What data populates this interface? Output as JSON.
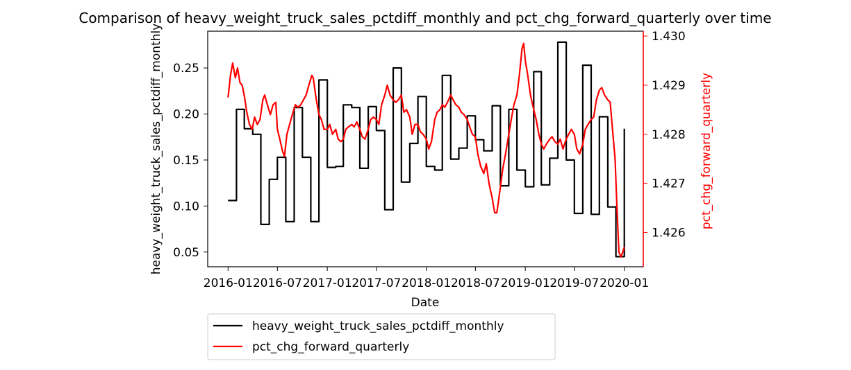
{
  "chart_data": {
    "type": "line",
    "title": "Comparison of heavy_weight_truck_sales_pctdiff_monthly and pct_chg_forward_quarterly over time",
    "xlabel": "Date",
    "ylabel_left": "heavy_weight_truck_sales_pctdiff_monthly",
    "ylabel_right": "pct_chg_forward_quarterly",
    "xlim": [
      "2015-10-18",
      "2020-03-11"
    ],
    "ylim_left": [
      0.034,
      0.29
    ],
    "ylim_right": [
      1.4253,
      1.4301
    ],
    "x_ticks": [
      "2016-01",
      "2016-07",
      "2017-01",
      "2017-07",
      "2018-01",
      "2018-07",
      "2019-01",
      "2019-07",
      "2020-01"
    ],
    "y_ticks_left": [
      "0.05",
      "0.10",
      "0.15",
      "0.20",
      "0.25"
    ],
    "y_ticks_right": [
      "1.426",
      "1.427",
      "1.428",
      "1.429",
      "1.430"
    ],
    "legend": {
      "placement": "below",
      "entries": [
        "heavy_weight_truck_sales_pctdiff_monthly",
        "pct_chg_forward_quarterly"
      ]
    },
    "colors": {
      "left_series": "#000000",
      "right_series": "#ff0000",
      "right_axis": "#ff0000"
    },
    "grid": false,
    "series": [
      {
        "name": "heavy_weight_truck_sales_pctdiff_monthly",
        "axis": "left",
        "step": true,
        "color": "#000000",
        "points": [
          [
            "2016-01-01",
            0.106
          ],
          [
            "2016-02-01",
            0.205
          ],
          [
            "2016-03-01",
            0.184
          ],
          [
            "2016-04-01",
            0.178
          ],
          [
            "2016-05-01",
            0.08
          ],
          [
            "2016-06-01",
            0.129
          ],
          [
            "2016-07-01",
            0.153
          ],
          [
            "2016-08-01",
            0.083
          ],
          [
            "2016-09-01",
            0.207
          ],
          [
            "2016-10-01",
            0.153
          ],
          [
            "2016-11-01",
            0.083
          ],
          [
            "2016-12-01",
            0.237
          ],
          [
            "2017-01-01",
            0.142
          ],
          [
            "2017-02-01",
            0.143
          ],
          [
            "2017-03-01",
            0.21
          ],
          [
            "2017-04-01",
            0.207
          ],
          [
            "2017-05-01",
            0.141
          ],
          [
            "2017-06-01",
            0.208
          ],
          [
            "2017-07-01",
            0.182
          ],
          [
            "2017-08-01",
            0.096
          ],
          [
            "2017-09-01",
            0.25
          ],
          [
            "2017-10-01",
            0.126
          ],
          [
            "2017-11-01",
            0.168
          ],
          [
            "2017-12-01",
            0.219
          ],
          [
            "2018-01-01",
            0.143
          ],
          [
            "2018-02-01",
            0.139
          ],
          [
            "2018-03-01",
            0.242
          ],
          [
            "2018-04-01",
            0.151
          ],
          [
            "2018-05-01",
            0.163
          ],
          [
            "2018-06-01",
            0.198
          ],
          [
            "2018-07-01",
            0.172
          ],
          [
            "2018-08-01",
            0.16
          ],
          [
            "2018-09-01",
            0.209
          ],
          [
            "2018-10-01",
            0.122
          ],
          [
            "2018-11-01",
            0.205
          ],
          [
            "2018-12-01",
            0.139
          ],
          [
            "2019-01-01",
            0.121
          ],
          [
            "2019-02-01",
            0.246
          ],
          [
            "2019-03-01",
            0.123
          ],
          [
            "2019-04-01",
            0.152
          ],
          [
            "2019-05-01",
            0.278
          ],
          [
            "2019-06-01",
            0.15
          ],
          [
            "2019-07-01",
            0.092
          ],
          [
            "2019-08-01",
            0.253
          ],
          [
            "2019-09-01",
            0.091
          ],
          [
            "2019-10-01",
            0.197
          ],
          [
            "2019-11-01",
            0.099
          ],
          [
            "2019-12-01",
            0.045
          ],
          [
            "2020-01-01",
            0.184
          ]
        ]
      },
      {
        "name": "pct_chg_forward_quarterly",
        "axis": "right",
        "step": false,
        "color": "#ff0000",
        "points": [
          [
            "2016-01-01",
            1.42875
          ],
          [
            "2016-01-10",
            1.4292
          ],
          [
            "2016-01-18",
            1.42945
          ],
          [
            "2016-01-28",
            1.42915
          ],
          [
            "2016-02-05",
            1.42935
          ],
          [
            "2016-02-14",
            1.42905
          ],
          [
            "2016-02-22",
            1.429
          ],
          [
            "2016-03-02",
            1.42875
          ],
          [
            "2016-03-10",
            1.42845
          ],
          [
            "2016-03-20",
            1.4282
          ],
          [
            "2016-03-30",
            1.4281
          ],
          [
            "2016-04-08",
            1.42835
          ],
          [
            "2016-04-18",
            1.4282
          ],
          [
            "2016-04-28",
            1.4283
          ],
          [
            "2016-05-08",
            1.4287
          ],
          [
            "2016-05-15",
            1.4288
          ],
          [
            "2016-05-25",
            1.4286
          ],
          [
            "2016-06-05",
            1.4284
          ],
          [
            "2016-06-15",
            1.4286
          ],
          [
            "2016-06-25",
            1.42865
          ],
          [
            "2016-07-01",
            1.4281
          ],
          [
            "2016-07-10",
            1.4279
          ],
          [
            "2016-07-20",
            1.42765
          ],
          [
            "2016-07-27",
            1.42755
          ],
          [
            "2016-08-05",
            1.428
          ],
          [
            "2016-08-15",
            1.4282
          ],
          [
            "2016-08-25",
            1.4284
          ],
          [
            "2016-09-05",
            1.4286
          ],
          [
            "2016-09-15",
            1.42855
          ],
          [
            "2016-09-25",
            1.4286
          ],
          [
            "2016-10-05",
            1.4287
          ],
          [
            "2016-10-15",
            1.4288
          ],
          [
            "2016-10-25",
            1.429
          ],
          [
            "2016-11-05",
            1.4292
          ],
          [
            "2016-11-10",
            1.42915
          ],
          [
            "2016-11-20",
            1.42875
          ],
          [
            "2016-12-01",
            1.4284
          ],
          [
            "2016-12-10",
            1.4283
          ],
          [
            "2016-12-20",
            1.4281
          ],
          [
            "2017-01-01",
            1.4281
          ],
          [
            "2017-01-10",
            1.4282
          ],
          [
            "2017-01-20",
            1.428
          ],
          [
            "2017-02-01",
            1.4281
          ],
          [
            "2017-02-10",
            1.4279
          ],
          [
            "2017-02-20",
            1.42785
          ],
          [
            "2017-03-01",
            1.4279
          ],
          [
            "2017-03-10",
            1.4281
          ],
          [
            "2017-03-20",
            1.42815
          ],
          [
            "2017-04-01",
            1.4282
          ],
          [
            "2017-04-10",
            1.42815
          ],
          [
            "2017-04-20",
            1.42825
          ],
          [
            "2017-05-01",
            1.4281
          ],
          [
            "2017-05-10",
            1.42795
          ],
          [
            "2017-05-20",
            1.4279
          ],
          [
            "2017-06-01",
            1.4281
          ],
          [
            "2017-06-10",
            1.4283
          ],
          [
            "2017-06-20",
            1.42835
          ],
          [
            "2017-07-01",
            1.4283
          ],
          [
            "2017-07-10",
            1.4282
          ],
          [
            "2017-07-20",
            1.4286
          ],
          [
            "2017-08-01",
            1.4288
          ],
          [
            "2017-08-10",
            1.429
          ],
          [
            "2017-08-20",
            1.4288
          ],
          [
            "2017-09-01",
            1.4287
          ],
          [
            "2017-09-10",
            1.42865
          ],
          [
            "2017-09-20",
            1.4287
          ],
          [
            "2017-10-01",
            1.4288
          ],
          [
            "2017-10-10",
            1.42845
          ],
          [
            "2017-10-20",
            1.4285
          ],
          [
            "2017-11-01",
            1.42835
          ],
          [
            "2017-11-10",
            1.428
          ],
          [
            "2017-11-20",
            1.4282
          ],
          [
            "2017-12-01",
            1.4282
          ],
          [
            "2017-12-10",
            1.42805
          ],
          [
            "2017-12-20",
            1.428
          ],
          [
            "2018-01-01",
            1.4279
          ],
          [
            "2018-01-10",
            1.4277
          ],
          [
            "2018-01-20",
            1.42785
          ],
          [
            "2018-02-01",
            1.4283
          ],
          [
            "2018-02-10",
            1.42845
          ],
          [
            "2018-02-20",
            1.4285
          ],
          [
            "2018-03-01",
            1.4286
          ],
          [
            "2018-03-10",
            1.42855
          ],
          [
            "2018-03-20",
            1.42865
          ],
          [
            "2018-04-01",
            1.4288
          ],
          [
            "2018-04-10",
            1.4287
          ],
          [
            "2018-04-20",
            1.4286
          ],
          [
            "2018-05-01",
            1.42855
          ],
          [
            "2018-05-10",
            1.42845
          ],
          [
            "2018-05-20",
            1.4284
          ],
          [
            "2018-06-01",
            1.4283
          ],
          [
            "2018-06-10",
            1.42815
          ],
          [
            "2018-06-20",
            1.428
          ],
          [
            "2018-07-01",
            1.42795
          ],
          [
            "2018-07-10",
            1.4276
          ],
          [
            "2018-07-20",
            1.42735
          ],
          [
            "2018-08-01",
            1.4272
          ],
          [
            "2018-08-10",
            1.4274
          ],
          [
            "2018-08-20",
            1.427
          ],
          [
            "2018-09-01",
            1.4267
          ],
          [
            "2018-09-10",
            1.4264
          ],
          [
            "2018-09-18",
            1.4264
          ],
          [
            "2018-09-28",
            1.4268
          ],
          [
            "2018-10-10",
            1.4273
          ],
          [
            "2018-10-20",
            1.4276
          ],
          [
            "2018-11-01",
            1.428
          ],
          [
            "2018-11-10",
            1.4283
          ],
          [
            "2018-11-20",
            1.4286
          ],
          [
            "2018-12-01",
            1.4288
          ],
          [
            "2018-12-10",
            1.4292
          ],
          [
            "2018-12-20",
            1.42975
          ],
          [
            "2018-12-26",
            1.42985
          ],
          [
            "2019-01-01",
            1.4295
          ],
          [
            "2019-01-10",
            1.4292
          ],
          [
            "2019-01-20",
            1.4288
          ],
          [
            "2019-02-01",
            1.4285
          ],
          [
            "2019-02-10",
            1.4283
          ],
          [
            "2019-02-20",
            1.428
          ],
          [
            "2019-03-01",
            1.4278
          ],
          [
            "2019-03-10",
            1.4277
          ],
          [
            "2019-03-20",
            1.4278
          ],
          [
            "2019-04-01",
            1.4279
          ],
          [
            "2019-04-10",
            1.42795
          ],
          [
            "2019-04-20",
            1.42785
          ],
          [
            "2019-05-01",
            1.4278
          ],
          [
            "2019-05-10",
            1.4279
          ],
          [
            "2019-05-20",
            1.4277
          ],
          [
            "2019-06-01",
            1.4279
          ],
          [
            "2019-06-10",
            1.428
          ],
          [
            "2019-06-20",
            1.4281
          ],
          [
            "2019-07-01",
            1.428
          ],
          [
            "2019-07-10",
            1.4277
          ],
          [
            "2019-07-20",
            1.4276
          ],
          [
            "2019-08-01",
            1.4278
          ],
          [
            "2019-08-10",
            1.4281
          ],
          [
            "2019-08-20",
            1.4282
          ],
          [
            "2019-09-01",
            1.4283
          ],
          [
            "2019-09-10",
            1.42835
          ],
          [
            "2019-09-20",
            1.4287
          ],
          [
            "2019-10-01",
            1.4289
          ],
          [
            "2019-10-10",
            1.42895
          ],
          [
            "2019-10-20",
            1.4288
          ],
          [
            "2019-11-01",
            1.4287
          ],
          [
            "2019-11-10",
            1.42865
          ],
          [
            "2019-11-20",
            1.428
          ],
          [
            "2019-11-28",
            1.4275
          ],
          [
            "2019-12-05",
            1.4265
          ],
          [
            "2019-12-12",
            1.4256
          ],
          [
            "2019-12-20",
            1.4255
          ],
          [
            "2020-01-01",
            1.4257
          ]
        ]
      }
    ]
  }
}
